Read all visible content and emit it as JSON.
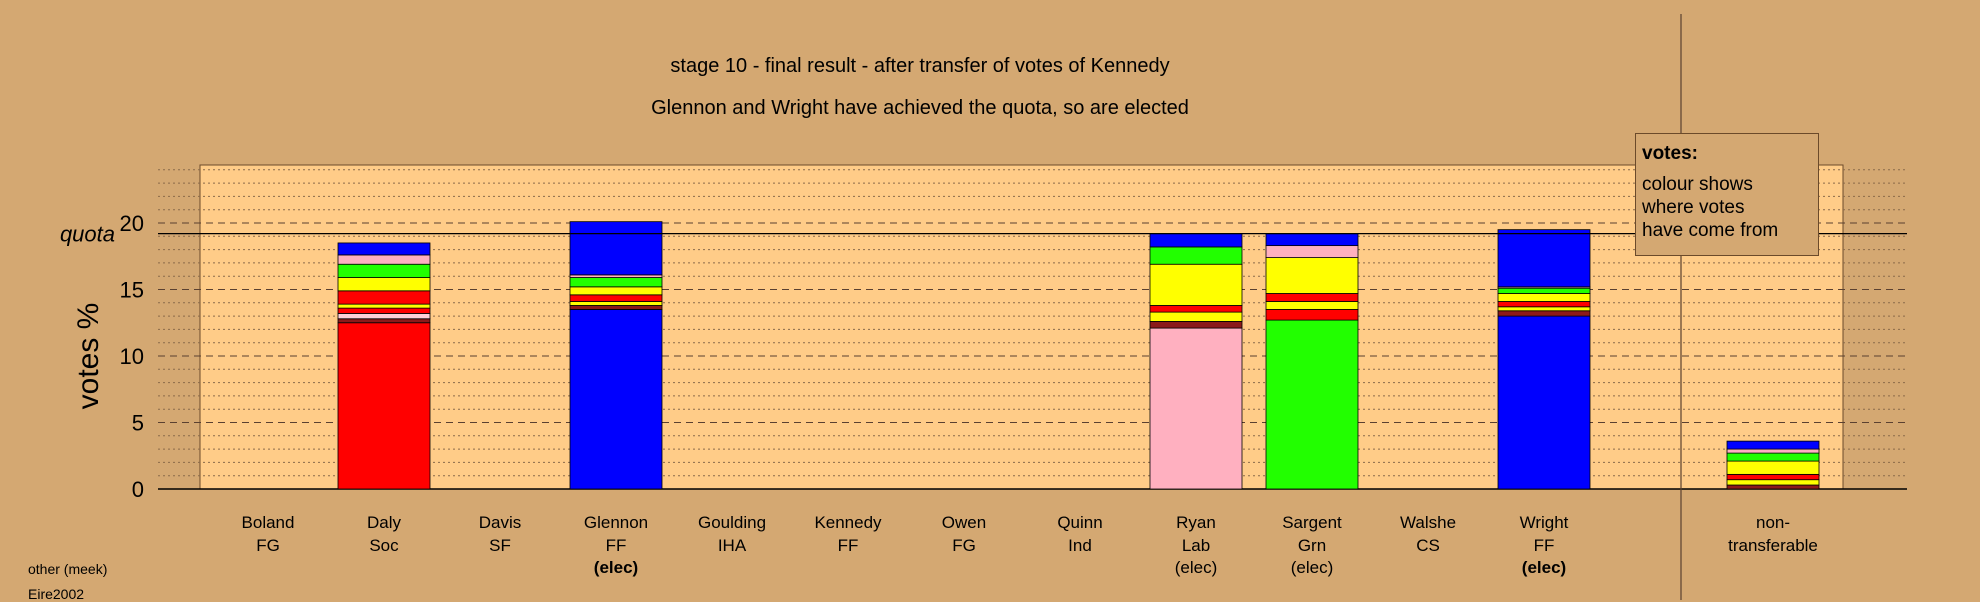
{
  "title_line1": "stage 10 - final result - after transfer of votes of Kennedy",
  "title_line2": "Glennon and Wright have achieved the quota, so are elected",
  "quota_label": "quota",
  "legend": {
    "title": "votes:",
    "lines": [
      "colour shows",
      "where votes",
      "have come from"
    ]
  },
  "footer": {
    "line1": "other (meek)",
    "line2": "Eire2002"
  },
  "colors": {
    "background": "#d4a872",
    "plot_background": "#ffcc88",
    "FG": "#0000ff",
    "Soc": "#ff0000",
    "Lab": "#ffb0c0",
    "Grn": "#22ff00",
    "Ind": "#ffff00",
    "CS": "#ffd0d8",
    "IHA": "#ff0000",
    "SF": "#8b1a1a",
    "FF": "#0000ff",
    "nontransferable": "#0000ff"
  },
  "chart_data": {
    "type": "bar",
    "stacked": true,
    "ylabel": "votes %",
    "ylim": [
      0,
      25
    ],
    "yticks": [
      0,
      5,
      10,
      15,
      20
    ],
    "quota": 19.2,
    "grid": "dashed horizontal",
    "legend_position": "top-right",
    "categories": [
      {
        "name": "Boland",
        "party": "FG",
        "status": ""
      },
      {
        "name": "Daly",
        "party": "Soc",
        "status": ""
      },
      {
        "name": "Davis",
        "party": "SF",
        "status": ""
      },
      {
        "name": "Glennon",
        "party": "FF",
        "status": "(elec)"
      },
      {
        "name": "Goulding",
        "party": "IHA",
        "status": ""
      },
      {
        "name": "Kennedy",
        "party": "FF",
        "status": ""
      },
      {
        "name": "Owen",
        "party": "FG",
        "status": ""
      },
      {
        "name": "Quinn",
        "party": "Ind",
        "status": ""
      },
      {
        "name": "Ryan",
        "party": "Lab",
        "status": "(elec)"
      },
      {
        "name": "Sargent",
        "party": "Grn",
        "status": "(elec)"
      },
      {
        "name": "Walshe",
        "party": "CS",
        "status": ""
      },
      {
        "name": "Wright",
        "party": "FF",
        "status": "(elec)"
      },
      {
        "name": "non-",
        "party": "transferable",
        "status": ""
      }
    ],
    "stacks": [
      [],
      [
        {
          "v": 12.5,
          "c": "#ff0000"
        },
        {
          "v": 0.3,
          "c": "#8b1a1a"
        },
        {
          "v": 0.4,
          "c": "#ffd0d8"
        },
        {
          "v": 0.4,
          "c": "#ff0000"
        },
        {
          "v": 0.3,
          "c": "#ffff00"
        },
        {
          "v": 1.0,
          "c": "#ff0000"
        },
        {
          "v": 1.0,
          "c": "#ffff00"
        },
        {
          "v": 1.0,
          "c": "#22ff00"
        },
        {
          "v": 0.7,
          "c": "#ffb0c0"
        },
        {
          "v": 0.9,
          "c": "#0000ff"
        }
      ],
      [],
      [
        {
          "v": 13.5,
          "c": "#0000ff"
        },
        {
          "v": 0.3,
          "c": "#8b1a1a"
        },
        {
          "v": 0.3,
          "c": "#ffff00"
        },
        {
          "v": 0.5,
          "c": "#ff0000"
        },
        {
          "v": 0.6,
          "c": "#ffff00"
        },
        {
          "v": 0.7,
          "c": "#22ff00"
        },
        {
          "v": 0.2,
          "c": "#ffb0c0"
        },
        {
          "v": 4.0,
          "c": "#0000ff"
        }
      ],
      [],
      [],
      [],
      [],
      [
        {
          "v": 12.1,
          "c": "#ffb0c0"
        },
        {
          "v": 0.5,
          "c": "#8b1a1a"
        },
        {
          "v": 0.7,
          "c": "#ffff00"
        },
        {
          "v": 0.5,
          "c": "#ff0000"
        },
        {
          "v": 3.1,
          "c": "#ffff00"
        },
        {
          "v": 1.3,
          "c": "#22ff00"
        },
        {
          "v": 1.0,
          "c": "#0000ff"
        }
      ],
      [
        {
          "v": 12.7,
          "c": "#22ff00"
        },
        {
          "v": 0.8,
          "c": "#ff0000"
        },
        {
          "v": 0.6,
          "c": "#ffff00"
        },
        {
          "v": 0.6,
          "c": "#ff0000"
        },
        {
          "v": 2.7,
          "c": "#ffff00"
        },
        {
          "v": 0.9,
          "c": "#ffb0c0"
        },
        {
          "v": 0.9,
          "c": "#0000ff"
        }
      ],
      [],
      [
        {
          "v": 13.0,
          "c": "#0000ff"
        },
        {
          "v": 0.4,
          "c": "#8b1a1a"
        },
        {
          "v": 0.3,
          "c": "#ffff00"
        },
        {
          "v": 0.4,
          "c": "#ff0000"
        },
        {
          "v": 0.6,
          "c": "#ffff00"
        },
        {
          "v": 0.4,
          "c": "#22ff00"
        },
        {
          "v": 0.1,
          "c": "#ffb0c0"
        },
        {
          "v": 4.3,
          "c": "#0000ff"
        }
      ],
      [
        {
          "v": 0.3,
          "c": "#8b1a1a"
        },
        {
          "v": 0.4,
          "c": "#ffff00"
        },
        {
          "v": 0.4,
          "c": "#ff0000"
        },
        {
          "v": 1.0,
          "c": "#ffff00"
        },
        {
          "v": 0.6,
          "c": "#22ff00"
        },
        {
          "v": 0.3,
          "c": "#ffb0c0"
        },
        {
          "v": 0.6,
          "c": "#0000ff"
        }
      ]
    ]
  }
}
